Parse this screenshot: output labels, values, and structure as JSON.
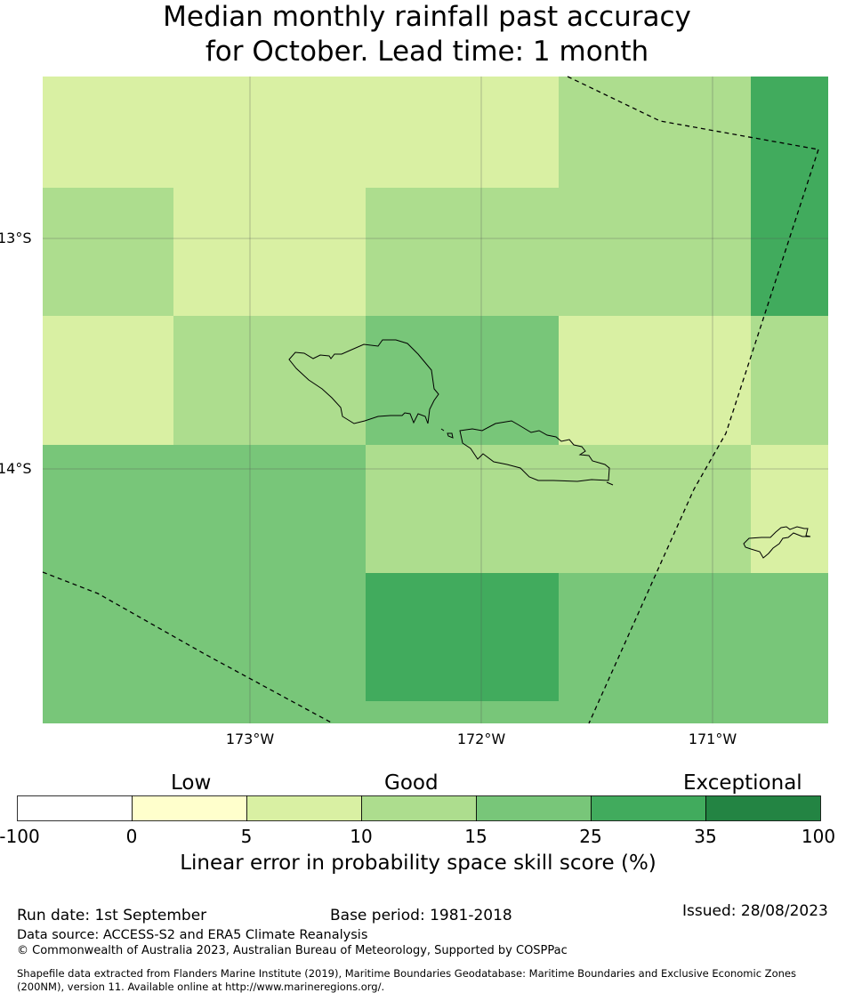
{
  "title": {
    "line1": "Median monthly rainfall past accuracy",
    "line2": "for October. Lead time: 1 month"
  },
  "map": {
    "lat_labels": [
      "13°S",
      "14°S"
    ],
    "lon_labels": [
      "173°W",
      "172°W",
      "171°W"
    ],
    "skill_grid_rows_north_to_south": [
      [
        "5-10",
        "5-10",
        "5-10",
        "10-15",
        "25-35"
      ],
      [
        "10-15",
        "5-10",
        "10-15",
        "10-15",
        "25-35"
      ],
      [
        "5-10",
        "10-15",
        "15-25",
        "5-10",
        "10-15"
      ],
      [
        "15-25",
        "15-25",
        "10-15",
        "10-15",
        "5-10"
      ],
      [
        "15-25",
        "15-25",
        "25-35",
        "15-25",
        "15-25"
      ]
    ],
    "features": [
      "samoa-coastline",
      "american-samoa-coastline",
      "eez-boundary-dashed"
    ]
  },
  "colorbar": {
    "categories": [
      "Low",
      "Good",
      "Exceptional"
    ],
    "ticks": [
      "-100",
      "0",
      "5",
      "10",
      "15",
      "25",
      "35",
      "100"
    ],
    "colors": [
      "#ffffff",
      "#ffffcc",
      "#d9f0a3",
      "#addd8e",
      "#78c679",
      "#41ab5d",
      "#238443"
    ],
    "label": "Linear error in probability space skill score (%)"
  },
  "footer": {
    "run_date": "Run date: 1st September",
    "base_period": "Base period: 1981-2018",
    "issued": "Issued: 28/08/2023",
    "data_source": "Data source: ACCESS-S2 and ERA5 Climate Reanalysis",
    "copyright": "© Commonwealth of Australia 2023, Australian Bureau of Meteorology, Supported by COSPPac",
    "shapefile_line1": "Shapefile data extracted from Flanders Marine Institute (2019), Maritime Boundaries Geodatabase: Maritime Boundaries and Exclusive Economic Zones",
    "shapefile_line2": "(200NM), version 11. Available online at http://www.marineregions.org/."
  }
}
